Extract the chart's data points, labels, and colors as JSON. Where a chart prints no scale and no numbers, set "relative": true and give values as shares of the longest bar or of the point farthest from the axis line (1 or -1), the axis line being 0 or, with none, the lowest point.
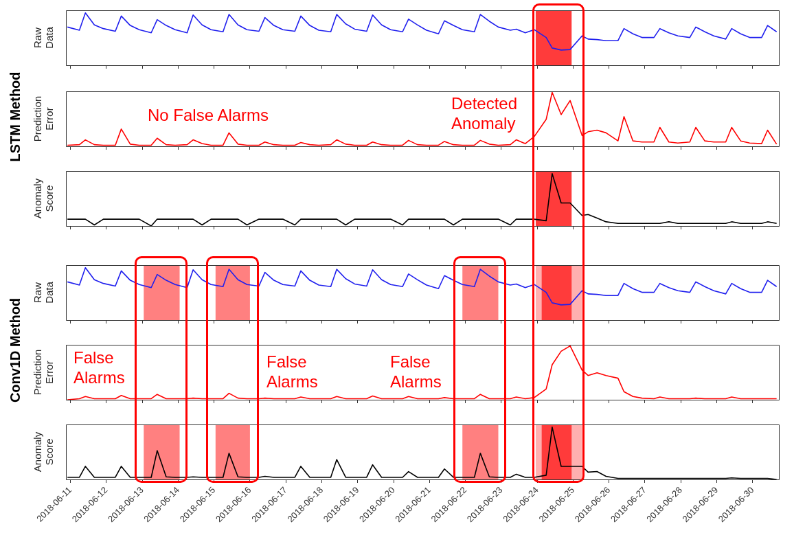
{
  "chart_data": [
    {
      "type": "line",
      "ylabel": "Raw Data",
      "annotations": [
        "LSTM Method"
      ],
      "relative": true,
      "color": "#1f1fee",
      "tick_labels": false,
      "xlim": [
        "2018-06-10T21:00",
        "2018-06-30T18:00"
      ],
      "xticks": [
        "2018-06-11",
        "2018-06-12",
        "2018-06-13",
        "2018-06-14",
        "2018-06-15",
        "2018-06-16",
        "2018-06-17",
        "2018-06-18",
        "2018-06-19",
        "2018-06-20",
        "2018-06-21",
        "2018-06-22",
        "2018-06-23",
        "2018-06-24",
        "2018-06-25",
        "2018-06-26",
        "2018-06-27",
        "2018-06-28",
        "2018-06-29",
        "2018-06-30"
      ],
      "bands": [
        {
          "axis": "x",
          "from": "2018-06-23T23:00",
          "to": "2018-06-24T23:00",
          "color": "#ff3b3b"
        }
      ],
      "x": [
        "2018-06-10T22:00",
        "2018-06-11T06:00",
        "2018-06-11T10:00",
        "2018-06-11T16:00",
        "2018-06-11T22:00",
        "2018-06-12T06:00",
        "2018-06-12T10:00",
        "2018-06-12T16:00",
        "2018-06-12T22:00",
        "2018-06-13T06:00",
        "2018-06-13T10:00",
        "2018-06-13T16:00",
        "2018-06-13T22:00",
        "2018-06-14T06:00",
        "2018-06-14T10:00",
        "2018-06-14T16:00",
        "2018-06-14T22:00",
        "2018-06-15T06:00",
        "2018-06-15T10:00",
        "2018-06-15T16:00",
        "2018-06-15T22:00",
        "2018-06-16T06:00",
        "2018-06-16T10:00",
        "2018-06-16T16:00",
        "2018-06-16T22:00",
        "2018-06-17T06:00",
        "2018-06-17T10:00",
        "2018-06-17T16:00",
        "2018-06-17T22:00",
        "2018-06-18T06:00",
        "2018-06-18T10:00",
        "2018-06-18T16:00",
        "2018-06-18T22:00",
        "2018-06-19T06:00",
        "2018-06-19T10:00",
        "2018-06-19T16:00",
        "2018-06-19T22:00",
        "2018-06-20T06:00",
        "2018-06-20T10:00",
        "2018-06-20T16:00",
        "2018-06-20T22:00",
        "2018-06-21T06:00",
        "2018-06-21T10:00",
        "2018-06-21T16:00",
        "2018-06-21T22:00",
        "2018-06-22T06:00",
        "2018-06-22T10:00",
        "2018-06-22T16:00",
        "2018-06-22T22:00",
        "2018-06-23T06:00",
        "2018-06-23T10:00",
        "2018-06-23T16:00",
        "2018-06-23T22:00",
        "2018-06-24T06:00",
        "2018-06-24T10:00",
        "2018-06-24T16:00",
        "2018-06-24T22:00",
        "2018-06-25T06:00",
        "2018-06-25T10:00",
        "2018-06-25T16:00",
        "2018-06-25T22:00",
        "2018-06-26T06:00",
        "2018-06-26T10:00",
        "2018-06-26T16:00",
        "2018-06-26T22:00",
        "2018-06-27T06:00",
        "2018-06-27T10:00",
        "2018-06-27T16:00",
        "2018-06-27T22:00",
        "2018-06-28T06:00",
        "2018-06-28T10:00",
        "2018-06-28T16:00",
        "2018-06-28T22:00",
        "2018-06-29T06:00",
        "2018-06-29T10:00",
        "2018-06-29T16:00",
        "2018-06-29T22:00",
        "2018-06-30T06:00",
        "2018-06-30T10:00",
        "2018-06-30T16:00"
      ],
      "values": [
        0.73,
        0.67,
        1.0,
        0.77,
        0.7,
        0.65,
        0.94,
        0.76,
        0.68,
        0.62,
        0.87,
        0.76,
        0.68,
        0.62,
        0.96,
        0.77,
        0.68,
        0.64,
        0.97,
        0.77,
        0.68,
        0.65,
        0.91,
        0.76,
        0.68,
        0.65,
        0.94,
        0.76,
        0.67,
        0.64,
        0.97,
        0.79,
        0.69,
        0.65,
        0.96,
        0.77,
        0.68,
        0.64,
        0.88,
        0.77,
        0.67,
        0.6,
        0.85,
        0.76,
        0.68,
        0.64,
        0.97,
        0.84,
        0.73,
        0.67,
        0.69,
        0.62,
        0.68,
        0.53,
        0.33,
        0.29,
        0.3,
        0.56,
        0.5,
        0.49,
        0.47,
        0.47,
        0.7,
        0.6,
        0.53,
        0.53,
        0.7,
        0.62,
        0.56,
        0.53,
        0.73,
        0.64,
        0.56,
        0.5,
        0.7,
        0.6,
        0.53,
        0.53,
        0.76,
        0.64
      ]
    },
    {
      "type": "line",
      "ylabel": "Prediction Error",
      "annotations": [
        "No False Alarms",
        "Detected Anomaly"
      ],
      "relative": true,
      "color": "#ff0000",
      "tick_labels": false,
      "xlim": [
        "2018-06-10T21:00",
        "2018-06-30T18:00"
      ],
      "xticks": [
        "2018-06-11",
        "2018-06-12",
        "2018-06-13",
        "2018-06-14",
        "2018-06-15",
        "2018-06-16",
        "2018-06-17",
        "2018-06-18",
        "2018-06-19",
        "2018-06-20",
        "2018-06-21",
        "2018-06-22",
        "2018-06-23",
        "2018-06-24",
        "2018-06-25",
        "2018-06-26",
        "2018-06-27",
        "2018-06-28",
        "2018-06-29",
        "2018-06-30"
      ],
      "x": [
        "2018-06-10T22:00",
        "2018-06-11T06:00",
        "2018-06-11T10:00",
        "2018-06-11T16:00",
        "2018-06-11T22:00",
        "2018-06-12T06:00",
        "2018-06-12T10:00",
        "2018-06-12T16:00",
        "2018-06-12T22:00",
        "2018-06-13T06:00",
        "2018-06-13T10:00",
        "2018-06-13T16:00",
        "2018-06-13T22:00",
        "2018-06-14T06:00",
        "2018-06-14T10:00",
        "2018-06-14T16:00",
        "2018-06-14T22:00",
        "2018-06-15T06:00",
        "2018-06-15T10:00",
        "2018-06-15T16:00",
        "2018-06-15T22:00",
        "2018-06-16T06:00",
        "2018-06-16T10:00",
        "2018-06-16T16:00",
        "2018-06-16T22:00",
        "2018-06-17T06:00",
        "2018-06-17T10:00",
        "2018-06-17T16:00",
        "2018-06-17T22:00",
        "2018-06-18T06:00",
        "2018-06-18T10:00",
        "2018-06-18T16:00",
        "2018-06-18T22:00",
        "2018-06-19T06:00",
        "2018-06-19T10:00",
        "2018-06-19T16:00",
        "2018-06-19T22:00",
        "2018-06-20T06:00",
        "2018-06-20T10:00",
        "2018-06-20T16:00",
        "2018-06-20T22:00",
        "2018-06-21T06:00",
        "2018-06-21T10:00",
        "2018-06-21T16:00",
        "2018-06-21T22:00",
        "2018-06-22T06:00",
        "2018-06-22T10:00",
        "2018-06-22T16:00",
        "2018-06-22T22:00",
        "2018-06-23T06:00",
        "2018-06-23T10:00",
        "2018-06-23T16:00",
        "2018-06-23T22:00",
        "2018-06-24T06:00",
        "2018-06-24T10:00",
        "2018-06-24T16:00",
        "2018-06-24T22:00",
        "2018-06-25T06:00",
        "2018-06-25T10:00",
        "2018-06-25T16:00",
        "2018-06-25T22:00",
        "2018-06-26T06:00",
        "2018-06-26T10:00",
        "2018-06-26T16:00",
        "2018-06-26T22:00",
        "2018-06-27T06:00",
        "2018-06-27T10:00",
        "2018-06-27T16:00",
        "2018-06-27T22:00",
        "2018-06-28T06:00",
        "2018-06-28T10:00",
        "2018-06-28T16:00",
        "2018-06-28T22:00",
        "2018-06-29T06:00",
        "2018-06-29T10:00",
        "2018-06-29T16:00",
        "2018-06-29T22:00",
        "2018-06-30T06:00",
        "2018-06-30T10:00",
        "2018-06-30T16:00"
      ],
      "values": [
        0.02,
        0.03,
        0.12,
        0.03,
        0.02,
        0.02,
        0.32,
        0.04,
        0.02,
        0.02,
        0.15,
        0.03,
        0.02,
        0.03,
        0.12,
        0.05,
        0.02,
        0.02,
        0.25,
        0.04,
        0.02,
        0.02,
        0.08,
        0.03,
        0.02,
        0.02,
        0.07,
        0.03,
        0.02,
        0.03,
        0.12,
        0.04,
        0.02,
        0.02,
        0.08,
        0.03,
        0.02,
        0.02,
        0.11,
        0.03,
        0.02,
        0.02,
        0.09,
        0.03,
        0.02,
        0.02,
        0.11,
        0.04,
        0.02,
        0.03,
        0.12,
        0.05,
        0.18,
        0.5,
        1.0,
        0.59,
        0.85,
        0.2,
        0.27,
        0.3,
        0.25,
        0.1,
        0.55,
        0.1,
        0.08,
        0.08,
        0.35,
        0.08,
        0.06,
        0.08,
        0.35,
        0.1,
        0.08,
        0.08,
        0.35,
        0.1,
        0.06,
        0.05,
        0.3,
        0.04
      ]
    },
    {
      "type": "line",
      "ylabel": "Anomaly Score",
      "relative": true,
      "color": "#000000",
      "tick_labels": false,
      "xlim": [
        "2018-06-10T21:00",
        "2018-06-30T18:00"
      ],
      "xticks": [
        "2018-06-11",
        "2018-06-12",
        "2018-06-13",
        "2018-06-14",
        "2018-06-15",
        "2018-06-16",
        "2018-06-17",
        "2018-06-18",
        "2018-06-19",
        "2018-06-20",
        "2018-06-21",
        "2018-06-22",
        "2018-06-23",
        "2018-06-24",
        "2018-06-25",
        "2018-06-26",
        "2018-06-27",
        "2018-06-28",
        "2018-06-29",
        "2018-06-30"
      ],
      "bands": [
        {
          "axis": "x",
          "from": "2018-06-23T23:00",
          "to": "2018-06-24T23:00",
          "color": "#ff3b3b"
        }
      ],
      "x": [
        "2018-06-10T22:00",
        "2018-06-11T06:00",
        "2018-06-11T10:00",
        "2018-06-11T16:00",
        "2018-06-11T22:00",
        "2018-06-12T06:00",
        "2018-06-12T10:00",
        "2018-06-12T16:00",
        "2018-06-12T22:00",
        "2018-06-13T06:00",
        "2018-06-13T10:00",
        "2018-06-13T16:00",
        "2018-06-13T22:00",
        "2018-06-14T06:00",
        "2018-06-14T10:00",
        "2018-06-14T16:00",
        "2018-06-14T22:00",
        "2018-06-15T06:00",
        "2018-06-15T10:00",
        "2018-06-15T16:00",
        "2018-06-15T22:00",
        "2018-06-16T06:00",
        "2018-06-16T10:00",
        "2018-06-16T16:00",
        "2018-06-16T22:00",
        "2018-06-17T06:00",
        "2018-06-17T10:00",
        "2018-06-17T16:00",
        "2018-06-17T22:00",
        "2018-06-18T06:00",
        "2018-06-18T10:00",
        "2018-06-18T16:00",
        "2018-06-18T22:00",
        "2018-06-19T06:00",
        "2018-06-19T10:00",
        "2018-06-19T16:00",
        "2018-06-19T22:00",
        "2018-06-20T06:00",
        "2018-06-20T10:00",
        "2018-06-20T16:00",
        "2018-06-20T22:00",
        "2018-06-21T06:00",
        "2018-06-21T10:00",
        "2018-06-21T16:00",
        "2018-06-21T22:00",
        "2018-06-22T06:00",
        "2018-06-22T10:00",
        "2018-06-22T16:00",
        "2018-06-22T22:00",
        "2018-06-23T06:00",
        "2018-06-23T10:00",
        "2018-06-23T16:00",
        "2018-06-23T22:00",
        "2018-06-24T06:00",
        "2018-06-24T10:00",
        "2018-06-24T16:00",
        "2018-06-24T22:00",
        "2018-06-25T06:00",
        "2018-06-25T10:00",
        "2018-06-25T16:00",
        "2018-06-25T22:00",
        "2018-06-26T06:00",
        "2018-06-26T10:00",
        "2018-06-26T16:00",
        "2018-06-26T22:00",
        "2018-06-27T06:00",
        "2018-06-27T10:00",
        "2018-06-27T16:00",
        "2018-06-27T22:00",
        "2018-06-28T06:00",
        "2018-06-28T10:00",
        "2018-06-28T16:00",
        "2018-06-28T22:00",
        "2018-06-29T06:00",
        "2018-06-29T10:00",
        "2018-06-29T16:00",
        "2018-06-29T22:00",
        "2018-06-30T06:00",
        "2018-06-30T10:00",
        "2018-06-30T16:00"
      ],
      "values": [
        0.13,
        0.13,
        0.13,
        0.02,
        0.13,
        0.13,
        0.13,
        0.13,
        0.13,
        0,
        0.13,
        0.13,
        0.13,
        0.13,
        0.13,
        0.02,
        0.13,
        0.13,
        0.13,
        0.13,
        0.02,
        0.13,
        0.13,
        0.13,
        0.13,
        0.02,
        0.13,
        0.13,
        0.13,
        0.13,
        0.13,
        0.02,
        0.13,
        0.13,
        0.13,
        0.13,
        0.13,
        0.02,
        0.13,
        0.13,
        0.13,
        0.13,
        0.13,
        0.02,
        0.13,
        0.13,
        0.13,
        0.13,
        0.13,
        0.02,
        0.13,
        0.13,
        0.13,
        0.1,
        1.0,
        0.44,
        0.44,
        0.2,
        0.22,
        0.15,
        0.08,
        0.05,
        0.05,
        0.05,
        0.05,
        0.05,
        0.05,
        0.08,
        0.05,
        0.05,
        0.05,
        0.05,
        0.05,
        0.05,
        0.08,
        0.05,
        0.05,
        0.05,
        0.08,
        0.05
      ]
    },
    {
      "type": "line",
      "ylabel": "Raw Data",
      "annotations": [
        "Conv1D Method"
      ],
      "relative": true,
      "color": "#1f1fee",
      "tick_labels": false,
      "xlim": [
        "2018-06-10T21:00",
        "2018-06-30T18:00"
      ],
      "xticks": [
        "2018-06-11",
        "2018-06-12",
        "2018-06-13",
        "2018-06-14",
        "2018-06-15",
        "2018-06-16",
        "2018-06-17",
        "2018-06-18",
        "2018-06-19",
        "2018-06-20",
        "2018-06-21",
        "2018-06-22",
        "2018-06-23",
        "2018-06-24",
        "2018-06-25",
        "2018-06-26",
        "2018-06-27",
        "2018-06-28",
        "2018-06-29",
        "2018-06-30"
      ],
      "bands": [
        {
          "axis": "x",
          "from": "2018-06-13T01:00",
          "to": "2018-06-14T01:00",
          "color": "#ff8080"
        },
        {
          "axis": "x",
          "from": "2018-06-15T01:00",
          "to": "2018-06-16T00:00",
          "color": "#ff8080"
        },
        {
          "axis": "x",
          "from": "2018-06-21T22:00",
          "to": "2018-06-22T22:00",
          "color": "#ff8080"
        },
        {
          "axis": "x",
          "from": "2018-06-23T23:00",
          "to": "2018-06-25T06:00",
          "color": "#ffb0b0"
        },
        {
          "axis": "x",
          "from": "2018-06-24T03:00",
          "to": "2018-06-24T23:00",
          "color": "#ff3b3b"
        }
      ],
      "x": [
        "2018-06-10T22:00",
        "2018-06-11T06:00",
        "2018-06-11T10:00",
        "2018-06-11T16:00",
        "2018-06-11T22:00",
        "2018-06-12T06:00",
        "2018-06-12T10:00",
        "2018-06-12T16:00",
        "2018-06-12T22:00",
        "2018-06-13T06:00",
        "2018-06-13T10:00",
        "2018-06-13T16:00",
        "2018-06-13T22:00",
        "2018-06-14T06:00",
        "2018-06-14T10:00",
        "2018-06-14T16:00",
        "2018-06-14T22:00",
        "2018-06-15T06:00",
        "2018-06-15T10:00",
        "2018-06-15T16:00",
        "2018-06-15T22:00",
        "2018-06-16T06:00",
        "2018-06-16T10:00",
        "2018-06-16T16:00",
        "2018-06-16T22:00",
        "2018-06-17T06:00",
        "2018-06-17T10:00",
        "2018-06-17T16:00",
        "2018-06-17T22:00",
        "2018-06-18T06:00",
        "2018-06-18T10:00",
        "2018-06-18T16:00",
        "2018-06-18T22:00",
        "2018-06-19T06:00",
        "2018-06-19T10:00",
        "2018-06-19T16:00",
        "2018-06-19T22:00",
        "2018-06-20T06:00",
        "2018-06-20T10:00",
        "2018-06-20T16:00",
        "2018-06-20T22:00",
        "2018-06-21T06:00",
        "2018-06-21T10:00",
        "2018-06-21T16:00",
        "2018-06-21T22:00",
        "2018-06-22T06:00",
        "2018-06-22T10:00",
        "2018-06-22T16:00",
        "2018-06-22T22:00",
        "2018-06-23T06:00",
        "2018-06-23T10:00",
        "2018-06-23T16:00",
        "2018-06-23T22:00",
        "2018-06-24T06:00",
        "2018-06-24T10:00",
        "2018-06-24T16:00",
        "2018-06-24T22:00",
        "2018-06-25T06:00",
        "2018-06-25T10:00",
        "2018-06-25T16:00",
        "2018-06-25T22:00",
        "2018-06-26T06:00",
        "2018-06-26T10:00",
        "2018-06-26T16:00",
        "2018-06-26T22:00",
        "2018-06-27T06:00",
        "2018-06-27T10:00",
        "2018-06-27T16:00",
        "2018-06-27T22:00",
        "2018-06-28T06:00",
        "2018-06-28T10:00",
        "2018-06-28T16:00",
        "2018-06-28T22:00",
        "2018-06-29T06:00",
        "2018-06-29T10:00",
        "2018-06-29T16:00",
        "2018-06-29T22:00",
        "2018-06-30T06:00",
        "2018-06-30T10:00",
        "2018-06-30T16:00"
      ],
      "values": [
        0.73,
        0.67,
        1.0,
        0.77,
        0.7,
        0.65,
        0.94,
        0.76,
        0.68,
        0.62,
        0.87,
        0.76,
        0.68,
        0.62,
        0.96,
        0.77,
        0.68,
        0.64,
        0.97,
        0.77,
        0.68,
        0.65,
        0.91,
        0.76,
        0.68,
        0.65,
        0.94,
        0.76,
        0.67,
        0.64,
        0.97,
        0.79,
        0.69,
        0.65,
        0.96,
        0.77,
        0.68,
        0.64,
        0.88,
        0.77,
        0.67,
        0.6,
        0.85,
        0.76,
        0.68,
        0.64,
        0.97,
        0.84,
        0.73,
        0.67,
        0.69,
        0.62,
        0.68,
        0.53,
        0.33,
        0.29,
        0.3,
        0.56,
        0.5,
        0.49,
        0.47,
        0.47,
        0.7,
        0.6,
        0.53,
        0.53,
        0.7,
        0.62,
        0.56,
        0.53,
        0.73,
        0.64,
        0.56,
        0.5,
        0.7,
        0.6,
        0.53,
        0.53,
        0.76,
        0.64
      ]
    },
    {
      "type": "line",
      "ylabel": "Prediction Error",
      "annotations": [
        "False Alarms",
        "False Alarms",
        "False Alarms"
      ],
      "relative": true,
      "color": "#ff0000",
      "tick_labels": false,
      "xlim": [
        "2018-06-10T21:00",
        "2018-06-30T18:00"
      ],
      "xticks": [
        "2018-06-11",
        "2018-06-12",
        "2018-06-13",
        "2018-06-14",
        "2018-06-15",
        "2018-06-16",
        "2018-06-17",
        "2018-06-18",
        "2018-06-19",
        "2018-06-20",
        "2018-06-21",
        "2018-06-22",
        "2018-06-23",
        "2018-06-24",
        "2018-06-25",
        "2018-06-26",
        "2018-06-27",
        "2018-06-28",
        "2018-06-29",
        "2018-06-30"
      ],
      "x": [
        "2018-06-10T22:00",
        "2018-06-11T06:00",
        "2018-06-11T10:00",
        "2018-06-11T16:00",
        "2018-06-11T22:00",
        "2018-06-12T06:00",
        "2018-06-12T10:00",
        "2018-06-12T16:00",
        "2018-06-12T22:00",
        "2018-06-13T06:00",
        "2018-06-13T10:00",
        "2018-06-13T16:00",
        "2018-06-13T22:00",
        "2018-06-14T06:00",
        "2018-06-14T10:00",
        "2018-06-14T16:00",
        "2018-06-14T22:00",
        "2018-06-15T06:00",
        "2018-06-15T10:00",
        "2018-06-15T16:00",
        "2018-06-15T22:00",
        "2018-06-16T06:00",
        "2018-06-16T10:00",
        "2018-06-16T16:00",
        "2018-06-16T22:00",
        "2018-06-17T06:00",
        "2018-06-17T10:00",
        "2018-06-17T16:00",
        "2018-06-17T22:00",
        "2018-06-18T06:00",
        "2018-06-18T10:00",
        "2018-06-18T16:00",
        "2018-06-18T22:00",
        "2018-06-19T06:00",
        "2018-06-19T10:00",
        "2018-06-19T16:00",
        "2018-06-19T22:00",
        "2018-06-20T06:00",
        "2018-06-20T10:00",
        "2018-06-20T16:00",
        "2018-06-20T22:00",
        "2018-06-21T06:00",
        "2018-06-21T10:00",
        "2018-06-21T16:00",
        "2018-06-21T22:00",
        "2018-06-22T06:00",
        "2018-06-22T10:00",
        "2018-06-22T16:00",
        "2018-06-22T22:00",
        "2018-06-23T06:00",
        "2018-06-23T10:00",
        "2018-06-23T16:00",
        "2018-06-23T22:00",
        "2018-06-24T06:00",
        "2018-06-24T10:00",
        "2018-06-24T16:00",
        "2018-06-24T22:00",
        "2018-06-25T06:00",
        "2018-06-25T10:00",
        "2018-06-25T16:00",
        "2018-06-25T22:00",
        "2018-06-26T06:00",
        "2018-06-26T10:00",
        "2018-06-26T16:00",
        "2018-06-26T22:00",
        "2018-06-27T06:00",
        "2018-06-27T10:00",
        "2018-06-27T16:00",
        "2018-06-27T22:00",
        "2018-06-28T06:00",
        "2018-06-28T10:00",
        "2018-06-28T16:00",
        "2018-06-28T22:00",
        "2018-06-29T06:00",
        "2018-06-29T10:00",
        "2018-06-29T16:00",
        "2018-06-29T22:00",
        "2018-06-30T06:00",
        "2018-06-30T10:00",
        "2018-06-30T16:00"
      ],
      "values": [
        0,
        0.02,
        0.06,
        0.02,
        0.02,
        0.02,
        0.08,
        0.02,
        0.02,
        0.02,
        0.1,
        0.02,
        0.02,
        0.02,
        0.03,
        0.02,
        0.02,
        0.02,
        0.12,
        0.03,
        0.02,
        0.02,
        0.03,
        0.02,
        0.02,
        0.02,
        0.05,
        0.02,
        0.02,
        0.02,
        0.06,
        0.02,
        0.02,
        0.02,
        0.07,
        0.02,
        0.02,
        0.02,
        0.06,
        0.02,
        0.02,
        0.02,
        0.04,
        0.02,
        0.02,
        0.02,
        0.1,
        0.02,
        0.02,
        0.02,
        0.05,
        0.02,
        0.04,
        0.2,
        0.65,
        0.9,
        1.0,
        0.55,
        0.45,
        0.5,
        0.45,
        0.4,
        0.15,
        0.06,
        0.03,
        0.02,
        0.05,
        0.02,
        0.02,
        0.02,
        0.03,
        0.02,
        0.02,
        0.02,
        0.05,
        0.02,
        0.02,
        0.02,
        0.02,
        0.02
      ]
    },
    {
      "type": "line",
      "ylabel": "Anomaly Score",
      "relative": true,
      "color": "#000000",
      "tick_labels": "x",
      "xlim": [
        "2018-06-10T21:00",
        "2018-06-30T18:00"
      ],
      "xticks": [
        "2018-06-11",
        "2018-06-12",
        "2018-06-13",
        "2018-06-14",
        "2018-06-15",
        "2018-06-16",
        "2018-06-17",
        "2018-06-18",
        "2018-06-19",
        "2018-06-20",
        "2018-06-21",
        "2018-06-22",
        "2018-06-23",
        "2018-06-24",
        "2018-06-25",
        "2018-06-26",
        "2018-06-27",
        "2018-06-28",
        "2018-06-29",
        "2018-06-30"
      ],
      "bands": [
        {
          "axis": "x",
          "from": "2018-06-13T01:00",
          "to": "2018-06-14T01:00",
          "color": "#ff8080"
        },
        {
          "axis": "x",
          "from": "2018-06-15T01:00",
          "to": "2018-06-16T00:00",
          "color": "#ff8080"
        },
        {
          "axis": "x",
          "from": "2018-06-21T22:00",
          "to": "2018-06-22T22:00",
          "color": "#ff8080"
        },
        {
          "axis": "x",
          "from": "2018-06-23T23:00",
          "to": "2018-06-25T06:00",
          "color": "#ffb0b0"
        },
        {
          "axis": "x",
          "from": "2018-06-24T03:00",
          "to": "2018-06-24T23:00",
          "color": "#ff3b3b"
        }
      ],
      "x": [
        "2018-06-10T22:00",
        "2018-06-11T06:00",
        "2018-06-11T10:00",
        "2018-06-11T16:00",
        "2018-06-11T22:00",
        "2018-06-12T06:00",
        "2018-06-12T10:00",
        "2018-06-12T16:00",
        "2018-06-12T22:00",
        "2018-06-13T06:00",
        "2018-06-13T10:00",
        "2018-06-13T16:00",
        "2018-06-13T22:00",
        "2018-06-14T06:00",
        "2018-06-14T10:00",
        "2018-06-14T16:00",
        "2018-06-14T22:00",
        "2018-06-15T06:00",
        "2018-06-15T10:00",
        "2018-06-15T16:00",
        "2018-06-15T22:00",
        "2018-06-16T06:00",
        "2018-06-16T10:00",
        "2018-06-16T16:00",
        "2018-06-16T22:00",
        "2018-06-17T06:00",
        "2018-06-17T10:00",
        "2018-06-17T16:00",
        "2018-06-17T22:00",
        "2018-06-18T06:00",
        "2018-06-18T10:00",
        "2018-06-18T16:00",
        "2018-06-18T22:00",
        "2018-06-19T06:00",
        "2018-06-19T10:00",
        "2018-06-19T16:00",
        "2018-06-19T22:00",
        "2018-06-20T06:00",
        "2018-06-20T10:00",
        "2018-06-20T16:00",
        "2018-06-20T22:00",
        "2018-06-21T06:00",
        "2018-06-21T10:00",
        "2018-06-21T16:00",
        "2018-06-21T22:00",
        "2018-06-22T06:00",
        "2018-06-22T10:00",
        "2018-06-22T16:00",
        "2018-06-22T22:00",
        "2018-06-23T06:00",
        "2018-06-23T10:00",
        "2018-06-23T16:00",
        "2018-06-23T22:00",
        "2018-06-24T06:00",
        "2018-06-24T10:00",
        "2018-06-24T16:00",
        "2018-06-24T22:00",
        "2018-06-25T06:00",
        "2018-06-25T10:00",
        "2018-06-25T16:00",
        "2018-06-25T22:00",
        "2018-06-26T06:00",
        "2018-06-26T10:00",
        "2018-06-26T16:00",
        "2018-06-26T22:00",
        "2018-06-27T06:00",
        "2018-06-27T10:00",
        "2018-06-27T16:00",
        "2018-06-27T22:00",
        "2018-06-28T06:00",
        "2018-06-28T10:00",
        "2018-06-28T16:00",
        "2018-06-28T22:00",
        "2018-06-29T06:00",
        "2018-06-29T10:00",
        "2018-06-29T16:00",
        "2018-06-29T22:00",
        "2018-06-30T06:00",
        "2018-06-30T10:00",
        "2018-06-30T16:00"
      ],
      "values": [
        0.04,
        0.04,
        0.25,
        0.04,
        0.04,
        0.04,
        0.25,
        0.04,
        0.04,
        0.04,
        0.55,
        0.05,
        0.04,
        0.04,
        0.05,
        0.04,
        0.04,
        0.04,
        0.5,
        0.05,
        0.04,
        0.04,
        0.06,
        0.04,
        0.04,
        0.04,
        0.25,
        0.04,
        0.04,
        0.04,
        0.38,
        0.04,
        0.04,
        0.04,
        0.28,
        0.04,
        0.04,
        0.04,
        0.15,
        0.04,
        0.04,
        0.04,
        0.2,
        0.04,
        0.04,
        0.04,
        0.5,
        0.05,
        0.04,
        0.04,
        0.1,
        0.04,
        0.04,
        0.08,
        1.0,
        0.25,
        0.25,
        0.25,
        0.14,
        0.15,
        0.06,
        0.02,
        0.02,
        0.02,
        0.02,
        0.02,
        0.02,
        0.02,
        0.02,
        0.02,
        0.02,
        0.02,
        0.02,
        0.02,
        0.03,
        0.02,
        0.02,
        0.02,
        0.02,
        0
      ]
    }
  ]
}
